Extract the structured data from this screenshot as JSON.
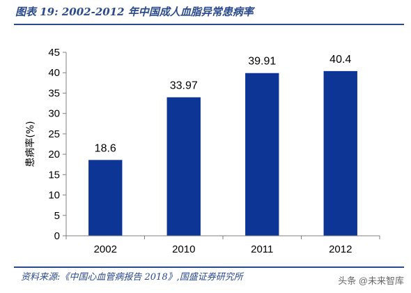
{
  "figure_title": "图表 19:  2002-2012 年中国成人血脂异常患病率",
  "source_note": "资料来源:《中国心血管病报告 2018》,国盛证券研究所",
  "watermark": "头条 @未来智库",
  "colors": {
    "bar": "#0d3595",
    "frame": "#2a4a8c",
    "axis": "#7f7f7f"
  },
  "chart_data": {
    "type": "bar",
    "categories": [
      "2002",
      "2010",
      "2011",
      "2012"
    ],
    "values": [
      18.6,
      33.97,
      39.91,
      40.4
    ],
    "data_labels": [
      "18.6",
      "33.97",
      "39.91",
      "40.4"
    ],
    "title": "",
    "xlabel": "",
    "ylabel": "患病率(%)",
    "ylim": [
      0,
      45
    ],
    "yticks": [
      0,
      5,
      10,
      15,
      20,
      25,
      30,
      35,
      40,
      45
    ],
    "grid": false,
    "legend": "none"
  }
}
